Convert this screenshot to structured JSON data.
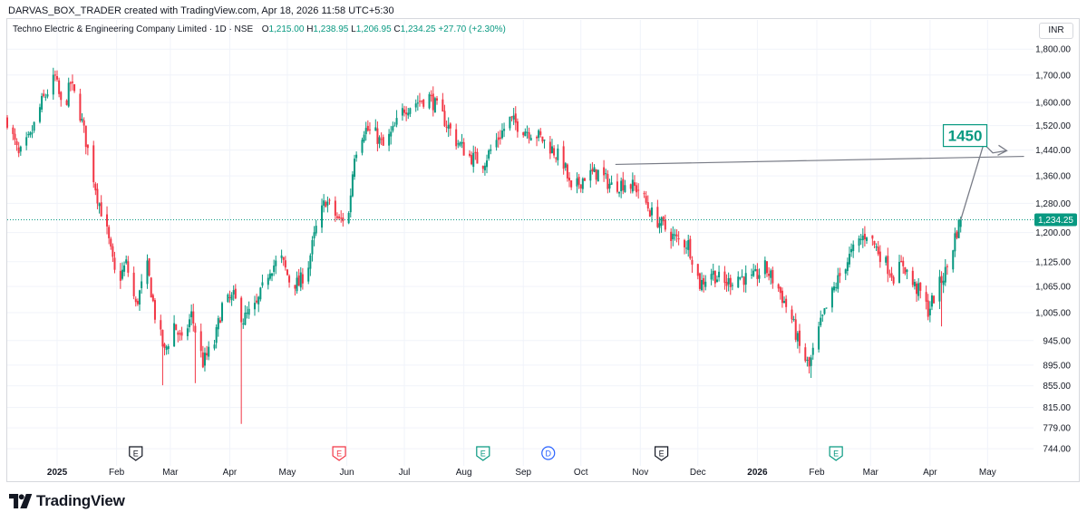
{
  "header": {
    "created_line": "DARVAS_BOX_TRADER created with TradingView.com, Apr 18, 2026 11:58 UTC+5:30"
  },
  "legend": {
    "symbol": "Techno Electric & Engineering Company Limited · 1D · NSE",
    "open_label": "O",
    "open_value": "1,215.00",
    "high_label": "H",
    "high_value": "1,238.95",
    "low_label": "L",
    "low_value": "1,206.95",
    "close_label": "C",
    "close_value": "1,234.25",
    "change": "+27.70 (+2.30%)"
  },
  "currency_button": "INR",
  "branding": {
    "logo_text": "TradingView"
  },
  "colors": {
    "up": "#089981",
    "down": "#f23645",
    "grid": "#f0f3fa",
    "axis_text": "#131722",
    "price_line": "#089981",
    "annotation": "#787b86"
  },
  "chart_data": {
    "type": "candlestick",
    "symbol": "Techno Electric & Engineering Company Limited",
    "interval": "1D",
    "exchange": "NSE",
    "y_scale": "log",
    "ylim": [
      725,
      1830
    ],
    "y_ticks": [
      744,
      779,
      815,
      855,
      895,
      945,
      1005,
      1065,
      1125,
      1200,
      1280,
      1360,
      1440,
      1520,
      1600,
      1700,
      1800
    ],
    "y_tick_labels": [
      "744.00",
      "779.00",
      "815.00",
      "855.00",
      "895.00",
      "945.00",
      "1,005.00",
      "1,065.00",
      "1,125.00",
      "1,200.00",
      "1,280.00",
      "1,360.00",
      "1,440.00",
      "1,520.00",
      "1,600.00",
      "1,700.00",
      "1,800.00"
    ],
    "x_start": "2024-12-06",
    "x_end": "2026-05-24",
    "x_ticks": [
      {
        "date": "2025-01-01",
        "label": "2025",
        "bold": true
      },
      {
        "date": "2025-02-01",
        "label": "Feb"
      },
      {
        "date": "2025-03-01",
        "label": "Mar"
      },
      {
        "date": "2025-04-01",
        "label": "Apr"
      },
      {
        "date": "2025-05-01",
        "label": "May"
      },
      {
        "date": "2025-06-01",
        "label": "Jun"
      },
      {
        "date": "2025-07-01",
        "label": "Jul"
      },
      {
        "date": "2025-08-01",
        "label": "Aug"
      },
      {
        "date": "2025-09-01",
        "label": "Sep"
      },
      {
        "date": "2025-10-01",
        "label": "Oct"
      },
      {
        "date": "2025-11-01",
        "label": "Nov"
      },
      {
        "date": "2025-12-01",
        "label": "Dec"
      },
      {
        "date": "2026-01-01",
        "label": "2026",
        "bold": true
      },
      {
        "date": "2026-02-01",
        "label": "Feb"
      },
      {
        "date": "2026-03-01",
        "label": "Mar"
      },
      {
        "date": "2026-04-01",
        "label": "Apr"
      },
      {
        "date": "2026-05-01",
        "label": "May"
      }
    ],
    "path": [
      [
        "2024-12-06",
        1540
      ],
      [
        "2024-12-12",
        1420
      ],
      [
        "2024-12-18",
        1480
      ],
      [
        "2024-12-24",
        1600
      ],
      [
        "2024-12-31",
        1690
      ],
      [
        "2025-01-04",
        1560
      ],
      [
        "2025-01-08",
        1670
      ],
      [
        "2025-01-13",
        1560
      ],
      [
        "2025-01-17",
        1440
      ],
      [
        "2025-01-22",
        1300
      ],
      [
        "2025-01-27",
        1200
      ],
      [
        "2025-02-01",
        1070
      ],
      [
        "2025-02-06",
        1120
      ],
      [
        "2025-02-11",
        1020
      ],
      [
        "2025-02-17",
        1110
      ],
      [
        "2025-02-21",
        1000
      ],
      [
        "2025-02-26",
        920
      ],
      [
        "2025-03-03",
        980
      ],
      [
        "2025-03-07",
        940
      ],
      [
        "2025-03-12",
        1000
      ],
      [
        "2025-03-18",
        900
      ],
      [
        "2025-03-24",
        940
      ],
      [
        "2025-03-28",
        1020
      ],
      [
        "2025-04-03",
        1040
      ],
      [
        "2025-04-08",
        990
      ],
      [
        "2025-04-15",
        1020
      ],
      [
        "2025-04-22",
        1110
      ],
      [
        "2025-04-28",
        1130
      ],
      [
        "2025-05-02",
        1080
      ],
      [
        "2025-05-07",
        1070
      ],
      [
        "2025-05-12",
        1120
      ],
      [
        "2025-05-16",
        1210
      ],
      [
        "2025-05-21",
        1290
      ],
      [
        "2025-05-28",
        1230
      ],
      [
        "2025-06-02",
        1250
      ],
      [
        "2025-06-05",
        1430
      ],
      [
        "2025-06-10",
        1510
      ],
      [
        "2025-06-16",
        1490
      ],
      [
        "2025-06-20",
        1450
      ],
      [
        "2025-06-25",
        1500
      ],
      [
        "2025-07-01",
        1580
      ],
      [
        "2025-07-07",
        1600
      ],
      [
        "2025-07-14",
        1620
      ],
      [
        "2025-07-21",
        1550
      ],
      [
        "2025-07-28",
        1470
      ],
      [
        "2025-08-04",
        1420
      ],
      [
        "2025-08-11",
        1400
      ],
      [
        "2025-08-18",
        1470
      ],
      [
        "2025-08-25",
        1540
      ],
      [
        "2025-09-01",
        1510
      ],
      [
        "2025-09-08",
        1490
      ],
      [
        "2025-09-15",
        1450
      ],
      [
        "2025-09-22",
        1400
      ],
      [
        "2025-09-26",
        1310
      ],
      [
        "2025-10-03",
        1360
      ],
      [
        "2025-10-10",
        1370
      ],
      [
        "2025-10-17",
        1330
      ],
      [
        "2025-10-24",
        1340
      ],
      [
        "2025-10-31",
        1320
      ],
      [
        "2025-11-07",
        1250
      ],
      [
        "2025-11-14",
        1210
      ],
      [
        "2025-11-20",
        1180
      ],
      [
        "2025-11-26",
        1170
      ],
      [
        "2025-12-02",
        1070
      ],
      [
        "2025-12-08",
        1100
      ],
      [
        "2025-12-15",
        1070
      ],
      [
        "2025-12-22",
        1090
      ],
      [
        "2025-12-29",
        1080
      ],
      [
        "2026-01-05",
        1110
      ],
      [
        "2026-01-12",
        1060
      ],
      [
        "2026-01-19",
        990
      ],
      [
        "2026-01-23",
        930
      ],
      [
        "2026-01-28",
        890
      ],
      [
        "2026-02-03",
        980
      ],
      [
        "2026-02-10",
        1060
      ],
      [
        "2026-02-16",
        1120
      ],
      [
        "2026-02-22",
        1170
      ],
      [
        "2026-02-27",
        1200
      ],
      [
        "2026-03-04",
        1160
      ],
      [
        "2026-03-09",
        1120
      ],
      [
        "2026-03-13",
        1090
      ],
      [
        "2026-03-18",
        1120
      ],
      [
        "2026-03-23",
        1070
      ],
      [
        "2026-03-27",
        1050
      ],
      [
        "2026-03-31",
        1010
      ],
      [
        "2026-04-05",
        1060
      ],
      [
        "2026-04-09",
        1100
      ],
      [
        "2026-04-12",
        1140
      ],
      [
        "2026-04-14",
        1190
      ],
      [
        "2026-04-17",
        1234.25
      ]
    ],
    "spikes": [
      {
        "date": "2025-04-07",
        "low": 786
      },
      {
        "date": "2025-03-14",
        "low": 860
      },
      {
        "date": "2025-02-25",
        "low": 856
      },
      {
        "date": "2026-01-29",
        "low": 870
      },
      {
        "date": "2026-04-07",
        "low": 975
      }
    ],
    "last_price": 1234.25,
    "last_price_label": "1,234.25",
    "annotations": {
      "target_label": "1450",
      "trend_line": {
        "from": [
          "2025-10-19",
          1395
        ],
        "to": [
          "2026-05-20",
          1420
        ]
      },
      "projection": {
        "from": [
          "2026-04-17",
          1234.25
        ],
        "to": [
          "2026-04-29",
          1460
        ],
        "to2": [
          "2026-05-11",
          1438
        ]
      }
    },
    "event_markers": [
      {
        "date": "2025-02-11",
        "letter": "E",
        "kind": "earnings-neutral"
      },
      {
        "date": "2025-05-28",
        "letter": "E",
        "kind": "earnings-negative"
      },
      {
        "date": "2025-08-11",
        "letter": "E",
        "kind": "earnings-positive"
      },
      {
        "date": "2025-09-14",
        "letter": "D",
        "kind": "dividend"
      },
      {
        "date": "2025-11-12",
        "letter": "E",
        "kind": "earnings-neutral"
      },
      {
        "date": "2026-02-11",
        "letter": "E",
        "kind": "earnings-positive"
      }
    ]
  }
}
